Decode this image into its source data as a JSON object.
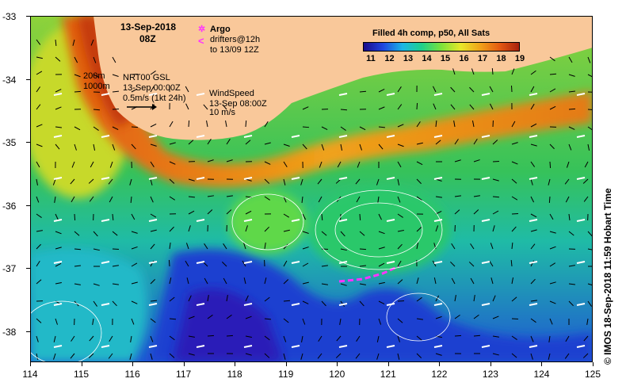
{
  "map": {
    "date": "13-Sep-2018",
    "time": "08Z",
    "legend_argo": "Argo",
    "legend_drifters_1": "drifters@12h",
    "legend_drifters_2": "to 13/09 12Z",
    "argo_symbol": "✲",
    "drifter_symbol": "<",
    "colorbar_title": "Filled 4h comp, p50, All Sats",
    "colorbar_labels": [
      "11",
      "12",
      "13",
      "14",
      "15",
      "16",
      "17",
      "18",
      "19"
    ],
    "depth_200": "200m",
    "depth_1000": "1000m",
    "nrt_1": "NRT00 GSL",
    "nrt_2": "13-Sep 00:00Z",
    "nrt_3": "0.5m/s (1kt 24h)",
    "wind_1": "WindSpeed",
    "wind_2": "13-Sep 08:00Z",
    "wind_3": "10 m/s",
    "credit": "© IMOS 18-Sep-2018 11:59 Hobart Time",
    "y_axis_labels": [
      "-33",
      "-34",
      "-35",
      "-36",
      "-37",
      "-38"
    ],
    "x_axis_labels": [
      "114",
      "115",
      "116",
      "117",
      "118",
      "119",
      "120",
      "121",
      "122",
      "123",
      "124",
      "125"
    ],
    "colors": {
      "land": "#f9c89a",
      "warm": "#c43b0c",
      "mid": "#1fd08a",
      "cool": "#1e46d8",
      "drifter": "#ff33ff"
    }
  }
}
